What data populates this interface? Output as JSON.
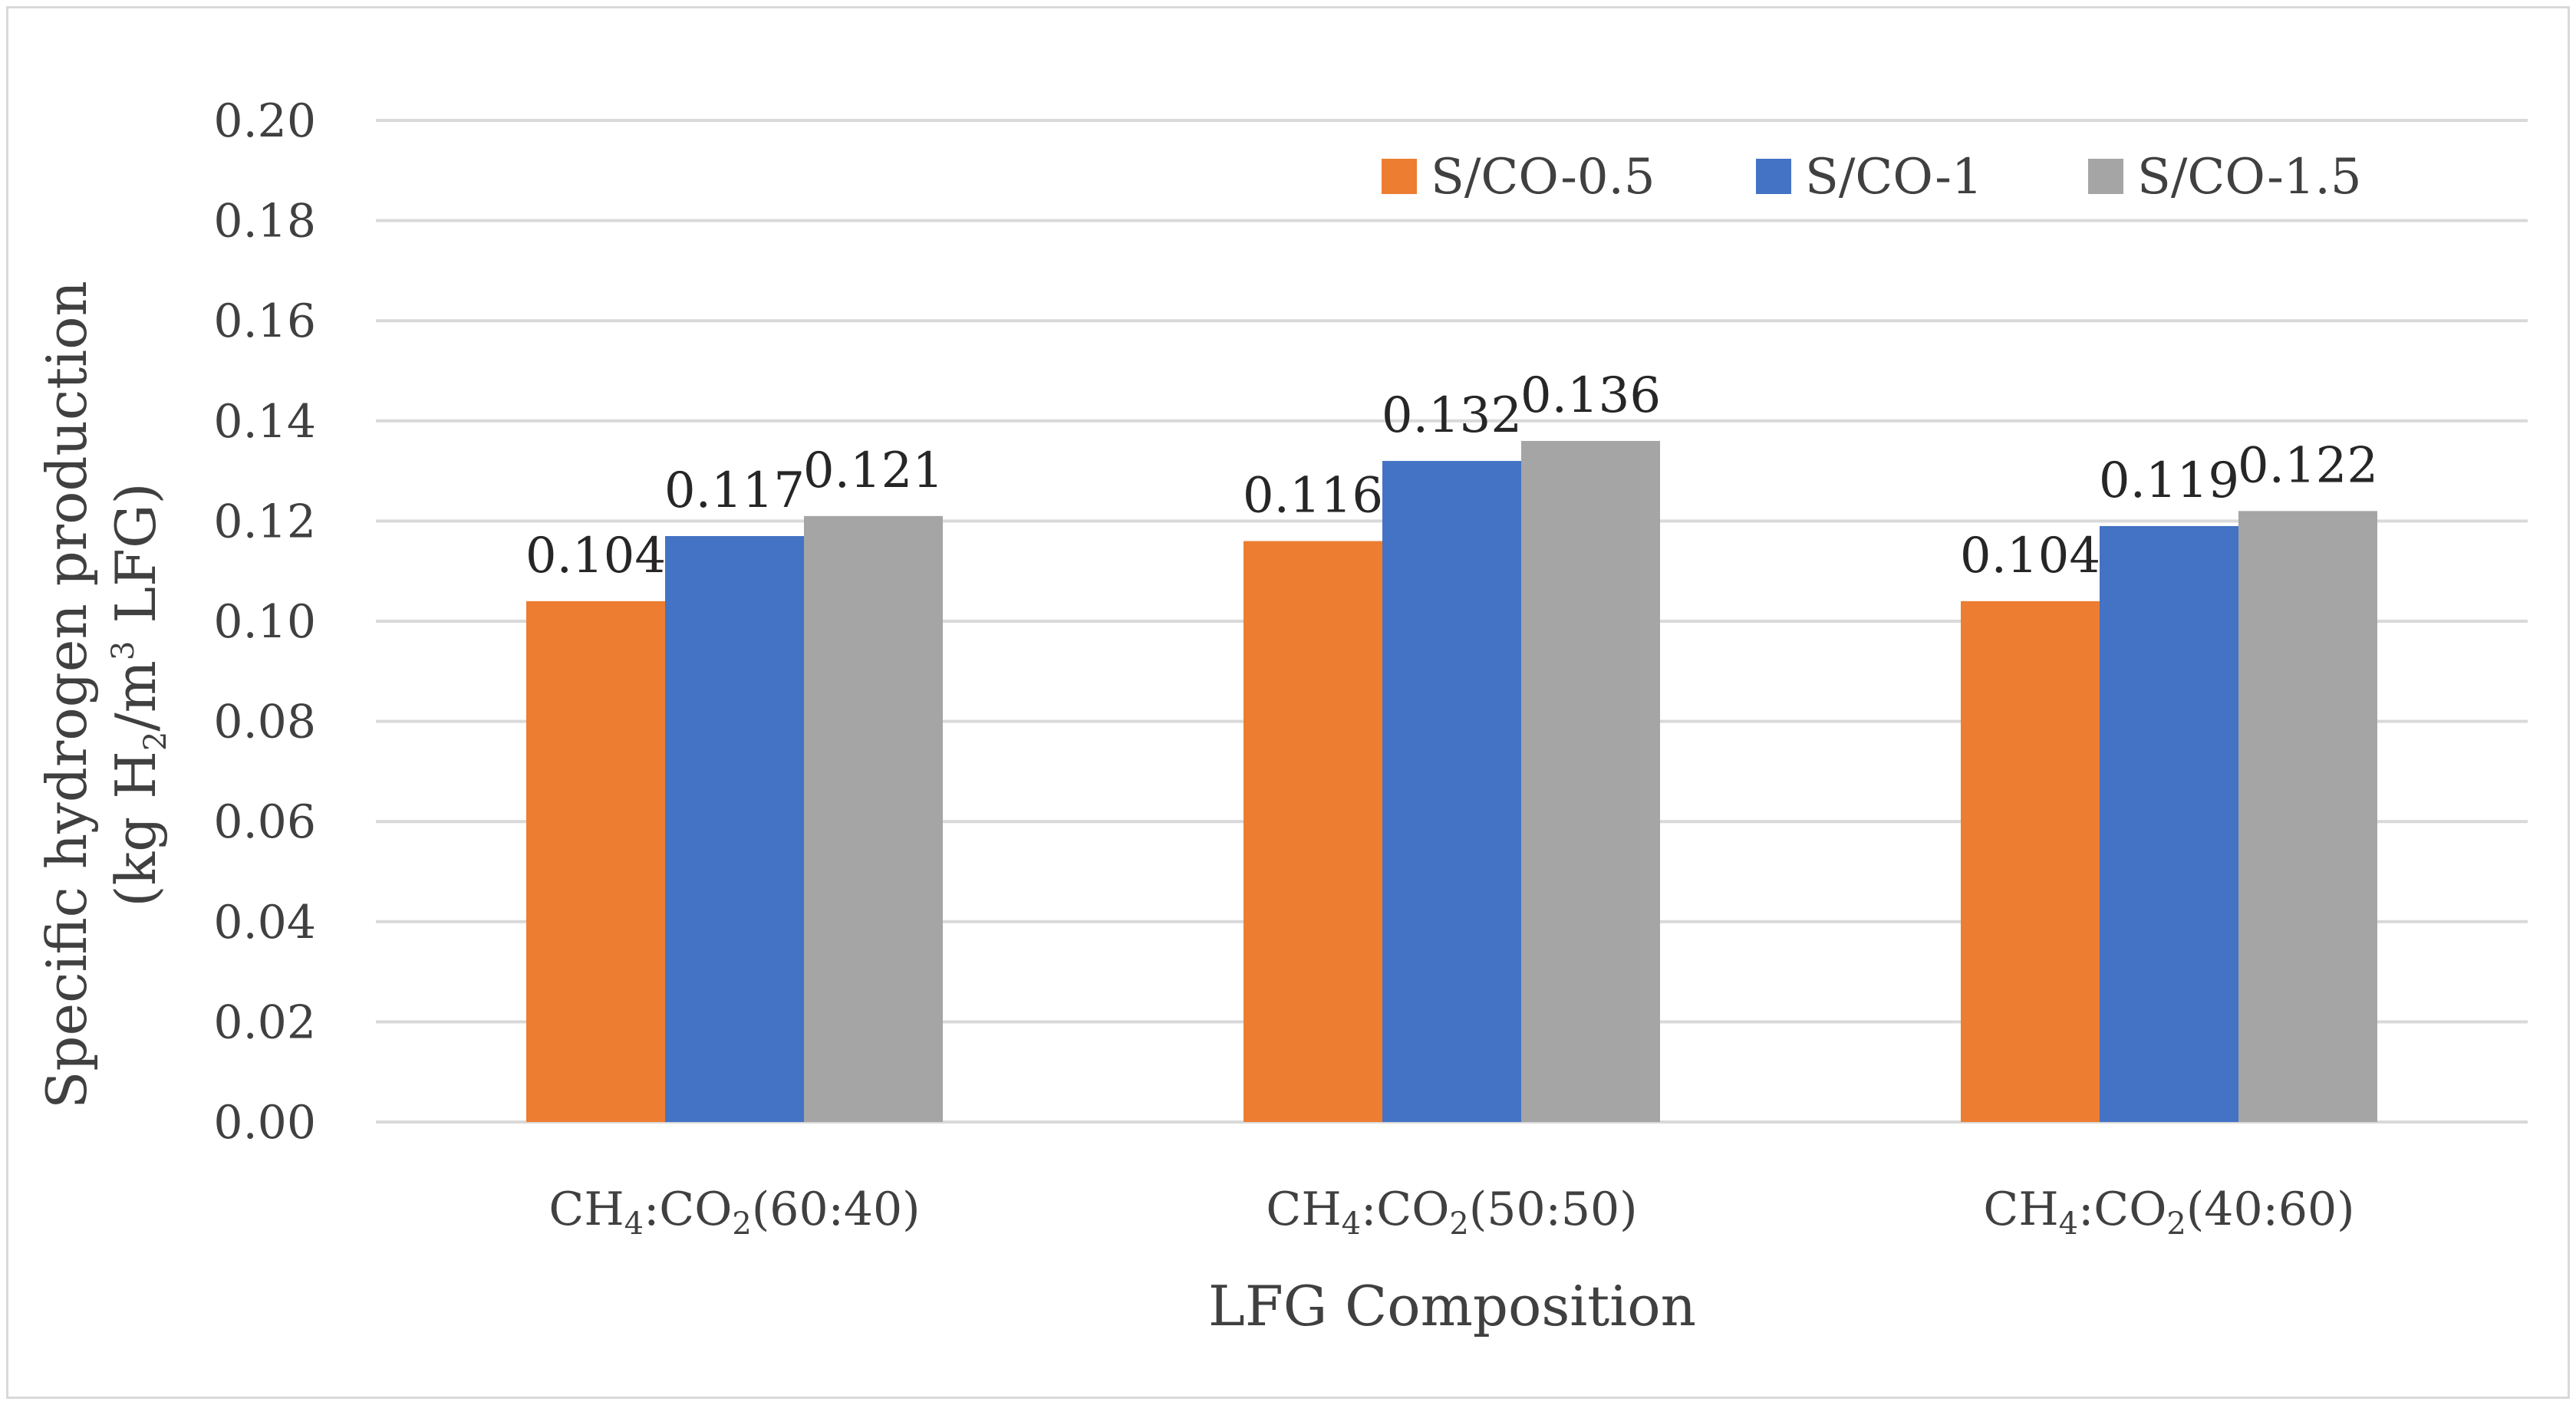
{
  "chart_data": {
    "type": "bar",
    "title": "",
    "xlabel": "LFG Composition",
    "ylabel": {
      "line1": "Specific hydrogen production",
      "line2_prefix": "(kg H",
      "line2_sub": "2",
      "line2_mid": "/m",
      "line2_sup": "3",
      "line2_suffix": " LFG)"
    },
    "categories": [
      {
        "p1": "CH",
        "s1": "4",
        "p2": ":CO",
        "s2": "2",
        "p3": "(60:40)"
      },
      {
        "p1": "CH",
        "s1": "4",
        "p2": ":CO",
        "s2": "2",
        "p3": "(50:50)"
      },
      {
        "p1": "CH",
        "s1": "4",
        "p2": ":CO",
        "s2": "2",
        "p3": "(40:60)"
      }
    ],
    "series": [
      {
        "name": "S/CO-0.5",
        "color": "#ed7d31",
        "values": [
          0.104,
          0.116,
          0.104
        ],
        "labels": [
          "0.104",
          "0.116",
          "0.104"
        ]
      },
      {
        "name": "S/CO-1",
        "color": "#4472c4",
        "values": [
          0.117,
          0.132,
          0.119
        ],
        "labels": [
          "0.117",
          "0.132",
          "0.119"
        ]
      },
      {
        "name": "S/CO-1.5",
        "color": "#a5a5a5",
        "values": [
          0.121,
          0.136,
          0.122
        ],
        "labels": [
          "0.121",
          "0.136",
          "0.122"
        ]
      }
    ],
    "ylim": [
      0,
      0.2
    ],
    "yticks": [
      "0.00",
      "0.02",
      "0.04",
      "0.06",
      "0.08",
      "0.10",
      "0.12",
      "0.14",
      "0.16",
      "0.18",
      "0.20"
    ],
    "grid": true,
    "legend": "top-right",
    "gridColor": "#d9d9d9"
  }
}
